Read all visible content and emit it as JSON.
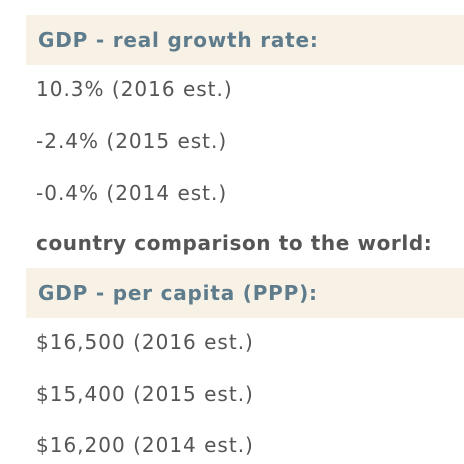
{
  "growth": {
    "header": "GDP - real growth rate:",
    "values": [
      "10.3% (2016 est.)",
      "-2.4% (2015 est.)",
      "-0.4% (2014 est.)"
    ],
    "comparison_label": "country comparison to the world:"
  },
  "per_capita": {
    "header": "GDP - per capita (PPP):",
    "values": [
      "$16,500 (2016 est.)",
      "$15,400 (2015 est.)",
      "$16,200 (2014 est.)"
    ]
  }
}
